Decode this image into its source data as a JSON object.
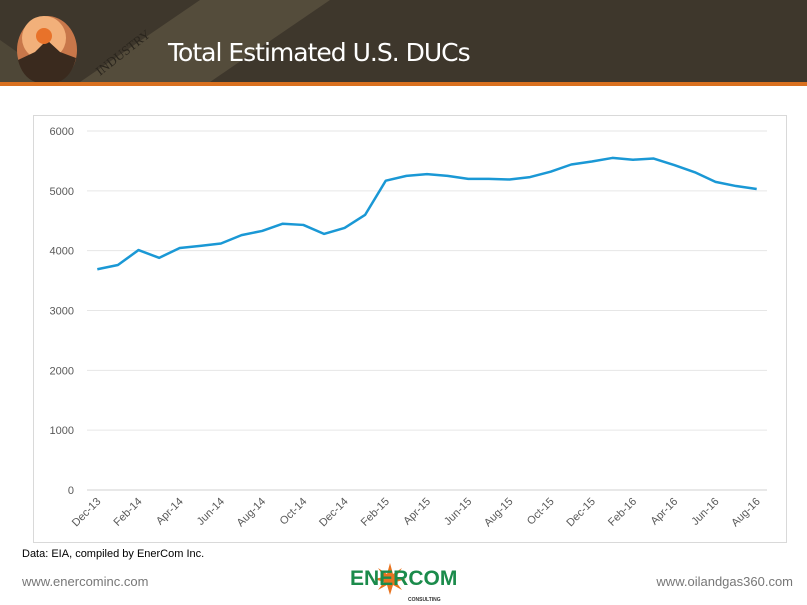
{
  "header": {
    "title": "Total Estimated U.S. DUCs",
    "banner_text": "INDUSTRY"
  },
  "colors": {
    "header_bg": "#3e372c",
    "accent": "#d9701f",
    "line": "#1a98d5",
    "grid": "#e6e6e6"
  },
  "chart_data": {
    "type": "line",
    "title": "",
    "xlabel": "",
    "ylabel": "",
    "ylim": [
      0,
      6000
    ],
    "yticks": [
      0,
      1000,
      2000,
      3000,
      4000,
      5000,
      6000
    ],
    "grid": true,
    "x": [
      "Dec-13",
      "Jan-14",
      "Feb-14",
      "Mar-14",
      "Apr-14",
      "May-14",
      "Jun-14",
      "Jul-14",
      "Aug-14",
      "Sep-14",
      "Oct-14",
      "Nov-14",
      "Dec-14",
      "Jan-15",
      "Feb-15",
      "Mar-15",
      "Apr-15",
      "May-15",
      "Jun-15",
      "Jul-15",
      "Aug-15",
      "Sep-15",
      "Oct-15",
      "Nov-15",
      "Dec-15",
      "Jan-16",
      "Feb-16",
      "Mar-16",
      "Apr-16",
      "May-16",
      "Jun-16",
      "Jul-16",
      "Aug-16"
    ],
    "xtick_labels": [
      "Dec-13",
      "Feb-14",
      "Apr-14",
      "Jun-14",
      "Aug-14",
      "Oct-14",
      "Dec-14",
      "Feb-15",
      "Apr-15",
      "Jun-15",
      "Aug-15",
      "Oct-15",
      "Dec-15",
      "Feb-16",
      "Apr-16",
      "Jun-16",
      "Aug-16"
    ],
    "values": [
      3690,
      3760,
      4010,
      3880,
      4045,
      4080,
      4120,
      4260,
      4330,
      4450,
      4430,
      4280,
      4380,
      4600,
      5170,
      5250,
      5280,
      5250,
      5200,
      5200,
      5190,
      5230,
      5320,
      5440,
      5490,
      5550,
      5520,
      5540,
      5430,
      5310,
      5150,
      5080,
      5030
    ]
  },
  "source": "Data: EIA, compiled by EnerCom Inc.",
  "footer": {
    "left": "www.enercominc.com",
    "right": "www.oilandgas360.com",
    "logo_text": "ENERCOM",
    "logo_sub": "CONSULTING"
  }
}
